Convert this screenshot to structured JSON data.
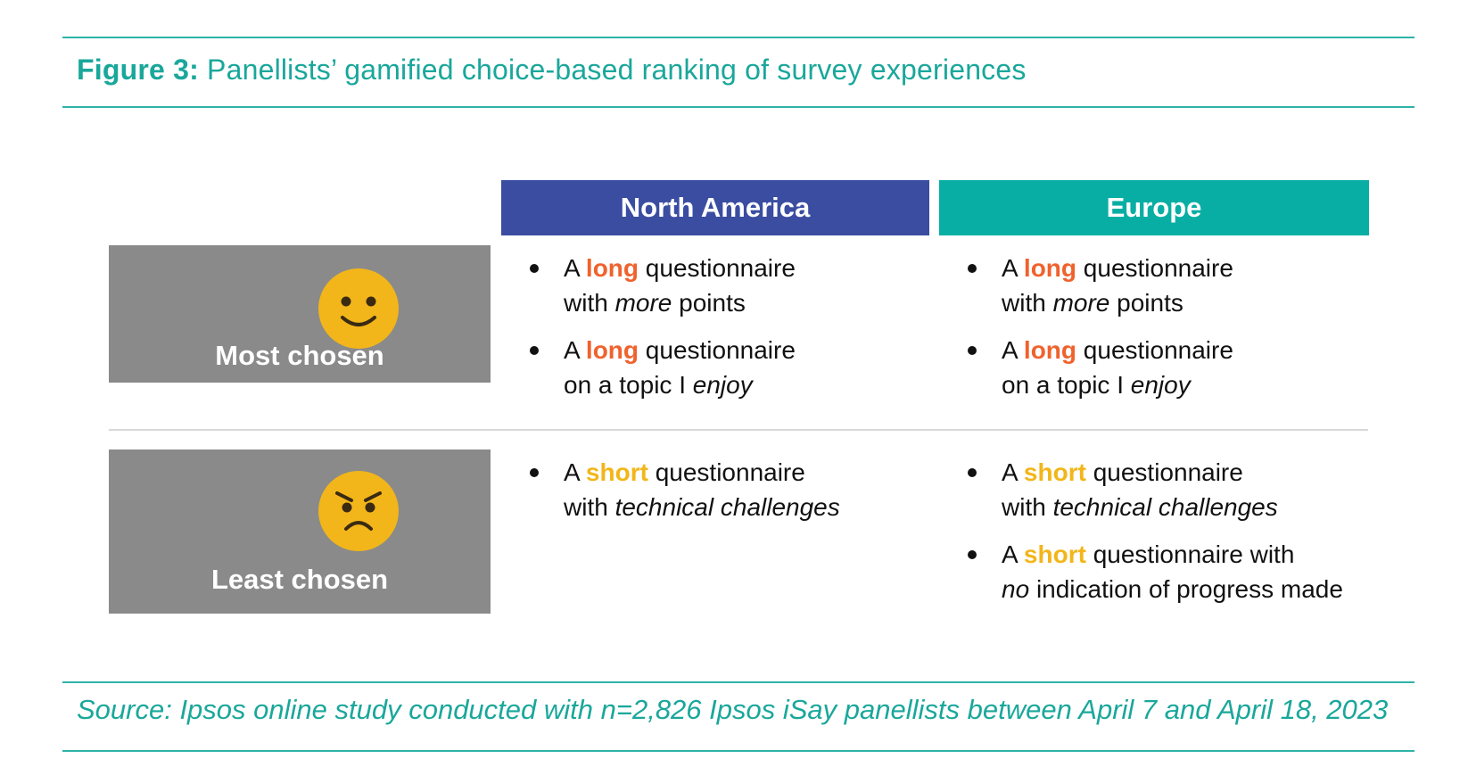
{
  "title": {
    "lead": "Figure 3:",
    "text": "Panellists’ gamified choice-based ranking of survey experiences"
  },
  "columns": {
    "north_america": "North America",
    "europe": "Europe"
  },
  "rows": {
    "most": {
      "label": "Most chosen",
      "icon": "smiley-face-icon"
    },
    "least": {
      "label": "Least chosen",
      "icon": "angry-face-icon"
    }
  },
  "colors": {
    "teal": "#08aea4",
    "blue": "#3a4da1",
    "card_grey": "#8a8a8a",
    "long_orange": "#f0622d",
    "short_yellow": "#f2b61a",
    "face_yellow": "#f2b61a"
  },
  "cells": {
    "na_most": {
      "b1": {
        "pre": "A",
        "kw": "long",
        "post": "questionnaire",
        "l2a": "with",
        "l2em": "more",
        "l2b": "points"
      },
      "b2": {
        "pre": "A",
        "kw": "long",
        "post": "questionnaire",
        "l2a": "on a topic I",
        "l2em": "enjoy"
      }
    },
    "eu_most": {
      "b1": {
        "pre": "A",
        "kw": "long",
        "post": "questionnaire",
        "l2a": "with",
        "l2em": "more",
        "l2b": "points"
      },
      "b2": {
        "pre": "A",
        "kw": "long",
        "post": "questionnaire",
        "l2a": "on a topic I",
        "l2em": "enjoy"
      }
    },
    "na_least": {
      "b1": {
        "pre": "A",
        "kw": "short",
        "post": "questionnaire",
        "l2a": "with",
        "l2em": "technical challenges"
      }
    },
    "eu_least": {
      "b1": {
        "pre": "A",
        "kw": "short",
        "post": "questionnaire",
        "l2a": "with",
        "l2em": "technical challenges"
      },
      "b2": {
        "pre": "A",
        "kw": "short",
        "post": "questionnaire with",
        "l2em": "no",
        "l2b": "indication of progress made"
      }
    }
  },
  "source": "Source: Ipsos online study conducted with n=2,826 Ipsos iSay panellists between April 7 and April 18, 2023"
}
